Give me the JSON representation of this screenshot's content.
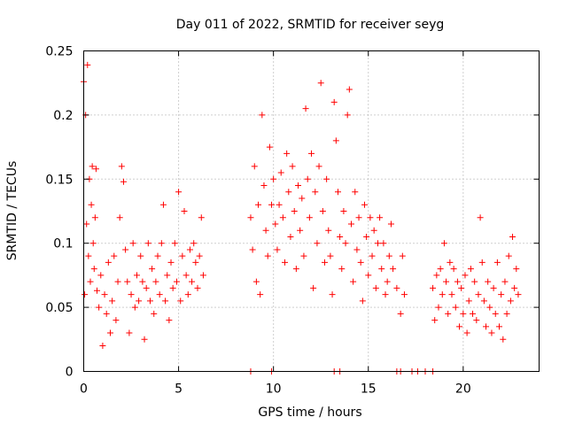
{
  "chart_data": {
    "type": "scatter",
    "title": "Day 011 of 2022, SRMTID for receiver seyg",
    "xlabel": "GPS time / hours",
    "ylabel": "SRMTID / TECUs",
    "xlim": [
      0,
      24
    ],
    "ylim": [
      0,
      0.25
    ],
    "xticks": [
      0,
      5,
      10,
      15,
      20
    ],
    "xtick_labels": [
      "0",
      "5",
      "10",
      "15",
      "20"
    ],
    "yticks": [
      0,
      0.05,
      0.1,
      0.15,
      0.2,
      0.25
    ],
    "ytick_labels": [
      "0",
      "0.05",
      "0.1",
      "0.15",
      "0.2",
      "0.25"
    ],
    "grid": true,
    "marker": "plus",
    "color": "#ff0000",
    "series": [
      {
        "name": "SRMTID",
        "points": [
          [
            0.0,
            0.226
          ],
          [
            0.05,
            0.06
          ],
          [
            0.1,
            0.2
          ],
          [
            0.15,
            0.115
          ],
          [
            0.2,
            0.239
          ],
          [
            0.25,
            0.09
          ],
          [
            0.3,
            0.15
          ],
          [
            0.35,
            0.07
          ],
          [
            0.4,
            0.13
          ],
          [
            0.45,
            0.16
          ],
          [
            0.5,
            0.1
          ],
          [
            0.55,
            0.08
          ],
          [
            0.6,
            0.12
          ],
          [
            0.65,
            0.158
          ],
          [
            0.7,
            0.063
          ],
          [
            0.8,
            0.05
          ],
          [
            0.9,
            0.075
          ],
          [
            1.0,
            0.02
          ],
          [
            1.1,
            0.06
          ],
          [
            1.2,
            0.045
          ],
          [
            1.3,
            0.085
          ],
          [
            1.4,
            0.03
          ],
          [
            1.5,
            0.055
          ],
          [
            1.6,
            0.09
          ],
          [
            1.7,
            0.04
          ],
          [
            1.8,
            0.07
          ],
          [
            1.9,
            0.12
          ],
          [
            2.0,
            0.16
          ],
          [
            2.1,
            0.148
          ],
          [
            2.2,
            0.095
          ],
          [
            2.3,
            0.07
          ],
          [
            2.4,
            0.03
          ],
          [
            2.5,
            0.06
          ],
          [
            2.6,
            0.1
          ],
          [
            2.7,
            0.05
          ],
          [
            2.8,
            0.075
          ],
          [
            2.9,
            0.055
          ],
          [
            3.0,
            0.09
          ],
          [
            3.1,
            0.07
          ],
          [
            3.2,
            0.025
          ],
          [
            3.3,
            0.065
          ],
          [
            3.4,
            0.1
          ],
          [
            3.5,
            0.055
          ],
          [
            3.6,
            0.08
          ],
          [
            3.7,
            0.045
          ],
          [
            3.8,
            0.07
          ],
          [
            3.9,
            0.09
          ],
          [
            4.0,
            0.06
          ],
          [
            4.1,
            0.1
          ],
          [
            4.2,
            0.13
          ],
          [
            4.3,
            0.055
          ],
          [
            4.4,
            0.075
          ],
          [
            4.5,
            0.04
          ],
          [
            4.6,
            0.085
          ],
          [
            4.7,
            0.065
          ],
          [
            4.8,
            0.1
          ],
          [
            4.9,
            0.07
          ],
          [
            5.0,
            0.14
          ],
          [
            5.1,
            0.055
          ],
          [
            5.2,
            0.09
          ],
          [
            5.3,
            0.125
          ],
          [
            5.4,
            0.075
          ],
          [
            5.5,
            0.06
          ],
          [
            5.6,
            0.095
          ],
          [
            5.7,
            0.07
          ],
          [
            5.8,
            0.1
          ],
          [
            5.9,
            0.085
          ],
          [
            6.0,
            0.065
          ],
          [
            6.1,
            0.09
          ],
          [
            6.2,
            0.12
          ],
          [
            6.3,
            0.075
          ],
          [
            8.8,
            0.12
          ],
          [
            8.9,
            0.095
          ],
          [
            9.0,
            0.16
          ],
          [
            9.1,
            0.07
          ],
          [
            9.2,
            0.13
          ],
          [
            9.3,
            0.06
          ],
          [
            9.4,
            0.2
          ],
          [
            9.5,
            0.145
          ],
          [
            9.6,
            0.11
          ],
          [
            9.7,
            0.09
          ],
          [
            9.8,
            0.175
          ],
          [
            9.9,
            0.13
          ],
          [
            10.0,
            0.15
          ],
          [
            10.1,
            0.115
          ],
          [
            10.2,
            0.095
          ],
          [
            10.3,
            0.13
          ],
          [
            10.4,
            0.155
          ],
          [
            10.5,
            0.12
          ],
          [
            10.6,
            0.085
          ],
          [
            10.7,
            0.17
          ],
          [
            10.8,
            0.14
          ],
          [
            10.9,
            0.105
          ],
          [
            11.0,
            0.16
          ],
          [
            11.1,
            0.125
          ],
          [
            11.2,
            0.08
          ],
          [
            11.3,
            0.145
          ],
          [
            11.4,
            0.11
          ],
          [
            11.5,
            0.135
          ],
          [
            11.6,
            0.09
          ],
          [
            11.7,
            0.205
          ],
          [
            11.8,
            0.15
          ],
          [
            11.9,
            0.12
          ],
          [
            12.0,
            0.17
          ],
          [
            12.1,
            0.065
          ],
          [
            12.2,
            0.14
          ],
          [
            12.3,
            0.1
          ],
          [
            12.4,
            0.16
          ],
          [
            12.5,
            0.225
          ],
          [
            12.6,
            0.125
          ],
          [
            12.7,
            0.085
          ],
          [
            12.8,
            0.15
          ],
          [
            12.9,
            0.11
          ],
          [
            13.0,
            0.09
          ],
          [
            13.1,
            0.06
          ],
          [
            13.2,
            0.21
          ],
          [
            13.3,
            0.18
          ],
          [
            13.4,
            0.14
          ],
          [
            13.5,
            0.105
          ],
          [
            13.6,
            0.08
          ],
          [
            13.7,
            0.125
          ],
          [
            13.8,
            0.1
          ],
          [
            13.9,
            0.2
          ],
          [
            14.0,
            0.22
          ],
          [
            14.1,
            0.115
          ],
          [
            14.2,
            0.07
          ],
          [
            14.3,
            0.14
          ],
          [
            14.4,
            0.095
          ],
          [
            14.5,
            0.12
          ],
          [
            14.6,
            0.085
          ],
          [
            14.7,
            0.055
          ],
          [
            14.8,
            0.13
          ],
          [
            14.9,
            0.105
          ],
          [
            15.0,
            0.075
          ],
          [
            15.1,
            0.12
          ],
          [
            15.2,
            0.09
          ],
          [
            15.3,
            0.11
          ],
          [
            15.4,
            0.065
          ],
          [
            15.5,
            0.1
          ],
          [
            15.6,
            0.12
          ],
          [
            15.7,
            0.08
          ],
          [
            15.8,
            0.1
          ],
          [
            15.9,
            0.06
          ],
          [
            16.0,
            0.07
          ],
          [
            16.1,
            0.09
          ],
          [
            16.2,
            0.115
          ],
          [
            16.3,
            0.08
          ],
          [
            16.5,
            0.065
          ],
          [
            16.7,
            0.045
          ],
          [
            16.8,
            0.09
          ],
          [
            16.9,
            0.06
          ],
          [
            18.4,
            0.065
          ],
          [
            18.5,
            0.04
          ],
          [
            18.6,
            0.075
          ],
          [
            18.7,
            0.05
          ],
          [
            18.8,
            0.08
          ],
          [
            18.9,
            0.06
          ],
          [
            19.0,
            0.1
          ],
          [
            19.1,
            0.07
          ],
          [
            19.2,
            0.045
          ],
          [
            19.3,
            0.085
          ],
          [
            19.4,
            0.06
          ],
          [
            19.5,
            0.08
          ],
          [
            19.6,
            0.05
          ],
          [
            19.7,
            0.07
          ],
          [
            19.8,
            0.035
          ],
          [
            19.9,
            0.065
          ],
          [
            20.0,
            0.045
          ],
          [
            20.1,
            0.075
          ],
          [
            20.2,
            0.03
          ],
          [
            20.3,
            0.055
          ],
          [
            20.4,
            0.08
          ],
          [
            20.5,
            0.045
          ],
          [
            20.6,
            0.07
          ],
          [
            20.7,
            0.04
          ],
          [
            20.8,
            0.06
          ],
          [
            20.9,
            0.12
          ],
          [
            21.0,
            0.085
          ],
          [
            21.1,
            0.055
          ],
          [
            21.2,
            0.035
          ],
          [
            21.3,
            0.07
          ],
          [
            21.4,
            0.05
          ],
          [
            21.5,
            0.03
          ],
          [
            21.6,
            0.065
          ],
          [
            21.7,
            0.045
          ],
          [
            21.8,
            0.085
          ],
          [
            21.9,
            0.035
          ],
          [
            22.0,
            0.06
          ],
          [
            22.1,
            0.025
          ],
          [
            22.2,
            0.07
          ],
          [
            22.3,
            0.045
          ],
          [
            22.4,
            0.09
          ],
          [
            22.5,
            0.055
          ],
          [
            22.6,
            0.105
          ],
          [
            22.7,
            0.065
          ],
          [
            22.8,
            0.08
          ],
          [
            22.9,
            0.06
          ],
          [
            8.8,
            0.0
          ],
          [
            9.9,
            0.0
          ],
          [
            13.2,
            0.0
          ],
          [
            13.5,
            0.0
          ],
          [
            16.5,
            0.0
          ],
          [
            16.7,
            0.0
          ],
          [
            17.3,
            0.0
          ],
          [
            17.6,
            0.0
          ],
          [
            18.0,
            0.0
          ],
          [
            18.4,
            0.0
          ]
        ]
      }
    ]
  }
}
